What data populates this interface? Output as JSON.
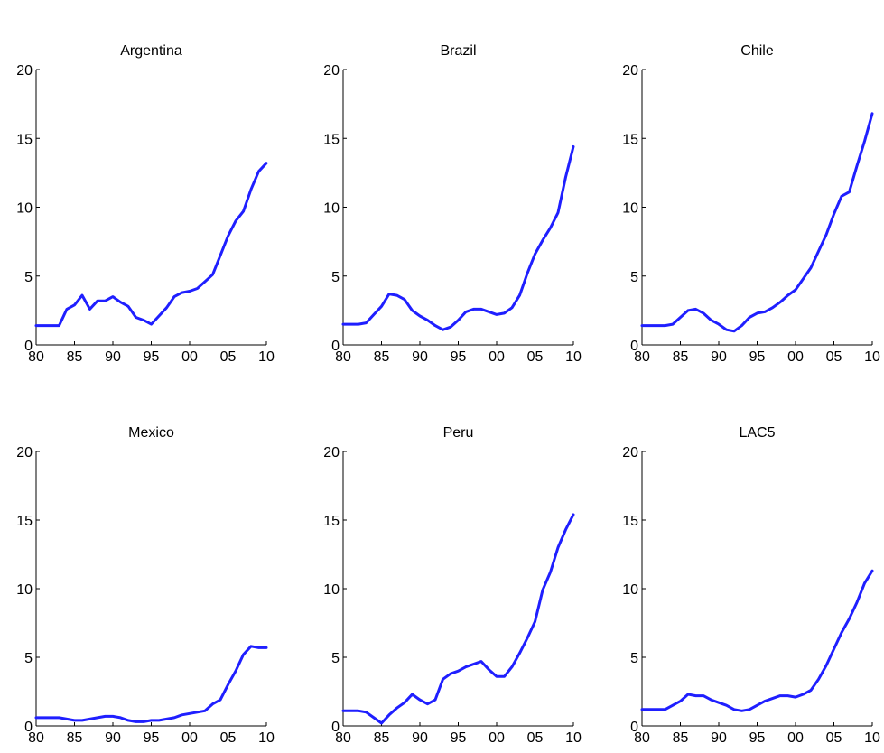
{
  "chart_data": [
    {
      "type": "line",
      "title": "Argentina",
      "xlim": [
        1980,
        2010
      ],
      "ylim": [
        0,
        20
      ],
      "xticks": [
        1980,
        1985,
        1990,
        1995,
        2000,
        2005,
        2010
      ],
      "xtick_labels": [
        "80",
        "85",
        "90",
        "95",
        "00",
        "05",
        "10"
      ],
      "yticks": [
        0,
        5,
        10,
        15,
        20
      ],
      "ytick_labels": [
        "0",
        "5",
        "10",
        "15",
        "20"
      ],
      "series": [
        {
          "color": "#1f1fff",
          "x": [
            1980,
            1981,
            1982,
            1983,
            1984,
            1985,
            1986,
            1987,
            1988,
            1989,
            1990,
            1991,
            1992,
            1993,
            1994,
            1995,
            1996,
            1997,
            1998,
            1999,
            2000,
            2001,
            2002,
            2003,
            2004,
            2005,
            2006,
            2007,
            2008,
            2009,
            2010
          ],
          "y": [
            1.4,
            1.4,
            1.4,
            1.4,
            2.6,
            2.9,
            3.6,
            2.6,
            3.2,
            3.2,
            3.5,
            3.1,
            2.8,
            2.0,
            1.8,
            1.5,
            2.1,
            2.7,
            3.5,
            3.8,
            3.9,
            4.1,
            4.6,
            5.1,
            6.5,
            7.9,
            9.0,
            9.7,
            11.3,
            12.6,
            13.2
          ]
        }
      ]
    },
    {
      "type": "line",
      "title": "Brazil",
      "xlim": [
        1980,
        2010
      ],
      "ylim": [
        0,
        20
      ],
      "xticks": [
        1980,
        1985,
        1990,
        1995,
        2000,
        2005,
        2010
      ],
      "xtick_labels": [
        "80",
        "85",
        "90",
        "95",
        "00",
        "05",
        "10"
      ],
      "yticks": [
        0,
        5,
        10,
        15,
        20
      ],
      "ytick_labels": [
        "0",
        "5",
        "10",
        "15",
        "20"
      ],
      "series": [
        {
          "color": "#1f1fff",
          "x": [
            1980,
            1981,
            1982,
            1983,
            1984,
            1985,
            1986,
            1987,
            1988,
            1989,
            1990,
            1991,
            1992,
            1993,
            1994,
            1995,
            1996,
            1997,
            1998,
            1999,
            2000,
            2001,
            2002,
            2003,
            2004,
            2005,
            2006,
            2007,
            2008,
            2009,
            2010
          ],
          "y": [
            1.5,
            1.5,
            1.5,
            1.6,
            2.2,
            2.8,
            3.7,
            3.6,
            3.3,
            2.5,
            2.1,
            1.8,
            1.4,
            1.1,
            1.3,
            1.8,
            2.4,
            2.6,
            2.6,
            2.4,
            2.2,
            2.3,
            2.7,
            3.6,
            5.2,
            6.6,
            7.6,
            8.5,
            9.6,
            12.2,
            14.4
          ]
        }
      ]
    },
    {
      "type": "line",
      "title": "Chile",
      "xlim": [
        1980,
        2010
      ],
      "ylim": [
        0,
        20
      ],
      "xticks": [
        1980,
        1985,
        1990,
        1995,
        2000,
        2005,
        2010
      ],
      "xtick_labels": [
        "80",
        "85",
        "90",
        "95",
        "00",
        "05",
        "10"
      ],
      "yticks": [
        0,
        5,
        10,
        15,
        20
      ],
      "ytick_labels": [
        "0",
        "5",
        "10",
        "15",
        "20"
      ],
      "series": [
        {
          "color": "#1f1fff",
          "x": [
            1980,
            1981,
            1982,
            1983,
            1984,
            1985,
            1986,
            1987,
            1988,
            1989,
            1990,
            1991,
            1992,
            1993,
            1994,
            1995,
            1996,
            1997,
            1998,
            1999,
            2000,
            2001,
            2002,
            2003,
            2004,
            2005,
            2006,
            2007,
            2008,
            2009,
            2010
          ],
          "y": [
            1.4,
            1.4,
            1.4,
            1.4,
            1.5,
            2.0,
            2.5,
            2.6,
            2.3,
            1.8,
            1.5,
            1.1,
            1.0,
            1.4,
            2.0,
            2.3,
            2.4,
            2.7,
            3.1,
            3.6,
            4.0,
            4.8,
            5.6,
            6.8,
            8.0,
            9.5,
            10.8,
            11.1,
            13.0,
            14.8,
            16.8
          ]
        }
      ]
    },
    {
      "type": "line",
      "title": "Mexico",
      "xlim": [
        1980,
        2010
      ],
      "ylim": [
        0,
        20
      ],
      "xticks": [
        1980,
        1985,
        1990,
        1995,
        2000,
        2005,
        2010
      ],
      "xtick_labels": [
        "80",
        "85",
        "90",
        "95",
        "00",
        "05",
        "10"
      ],
      "yticks": [
        0,
        5,
        10,
        15,
        20
      ],
      "ytick_labels": [
        "0",
        "5",
        "10",
        "15",
        "20"
      ],
      "series": [
        {
          "color": "#1f1fff",
          "x": [
            1980,
            1981,
            1982,
            1983,
            1984,
            1985,
            1986,
            1987,
            1988,
            1989,
            1990,
            1991,
            1992,
            1993,
            1994,
            1995,
            1996,
            1997,
            1998,
            1999,
            2000,
            2001,
            2002,
            2003,
            2004,
            2005,
            2006,
            2007,
            2008,
            2009,
            2010
          ],
          "y": [
            0.6,
            0.6,
            0.6,
            0.6,
            0.5,
            0.4,
            0.4,
            0.5,
            0.6,
            0.7,
            0.7,
            0.6,
            0.4,
            0.3,
            0.3,
            0.4,
            0.4,
            0.5,
            0.6,
            0.8,
            0.9,
            1.0,
            1.1,
            1.6,
            1.9,
            3.0,
            4.0,
            5.2,
            5.8,
            5.7,
            5.7
          ]
        }
      ]
    },
    {
      "type": "line",
      "title": "Peru",
      "xlim": [
        1980,
        2010
      ],
      "ylim": [
        0,
        20
      ],
      "xticks": [
        1980,
        1985,
        1990,
        1995,
        2000,
        2005,
        2010
      ],
      "xtick_labels": [
        "80",
        "85",
        "90",
        "95",
        "00",
        "05",
        "10"
      ],
      "yticks": [
        0,
        5,
        10,
        15,
        20
      ],
      "ytick_labels": [
        "0",
        "5",
        "10",
        "15",
        "20"
      ],
      "series": [
        {
          "color": "#1f1fff",
          "x": [
            1980,
            1981,
            1982,
            1983,
            1984,
            1985,
            1986,
            1987,
            1988,
            1989,
            1990,
            1991,
            1992,
            1993,
            1994,
            1995,
            1996,
            1997,
            1998,
            1999,
            2000,
            2001,
            2002,
            2003,
            2004,
            2005,
            2006,
            2007,
            2008,
            2009,
            2010
          ],
          "y": [
            1.1,
            1.1,
            1.1,
            1.0,
            0.6,
            0.2,
            0.8,
            1.3,
            1.7,
            2.3,
            1.9,
            1.6,
            1.9,
            3.4,
            3.8,
            4.0,
            4.3,
            4.5,
            4.7,
            4.1,
            3.6,
            3.6,
            4.3,
            5.3,
            6.4,
            7.6,
            9.9,
            11.2,
            13.0,
            14.3,
            15.4
          ]
        }
      ]
    },
    {
      "type": "line",
      "title": "LAC5",
      "xlim": [
        1980,
        2010
      ],
      "ylim": [
        0,
        20
      ],
      "xticks": [
        1980,
        1985,
        1990,
        1995,
        2000,
        2005,
        2010
      ],
      "xtick_labels": [
        "80",
        "85",
        "90",
        "95",
        "00",
        "05",
        "10"
      ],
      "yticks": [
        0,
        5,
        10,
        15,
        20
      ],
      "ytick_labels": [
        "0",
        "5",
        "10",
        "15",
        "20"
      ],
      "series": [
        {
          "color": "#1f1fff",
          "x": [
            1980,
            1981,
            1982,
            1983,
            1984,
            1985,
            1986,
            1987,
            1988,
            1989,
            1990,
            1991,
            1992,
            1993,
            1994,
            1995,
            1996,
            1997,
            1998,
            1999,
            2000,
            2001,
            2002,
            2003,
            2004,
            2005,
            2006,
            2007,
            2008,
            2009,
            2010
          ],
          "y": [
            1.2,
            1.2,
            1.2,
            1.2,
            1.5,
            1.8,
            2.3,
            2.2,
            2.2,
            1.9,
            1.7,
            1.5,
            1.2,
            1.1,
            1.2,
            1.5,
            1.8,
            2.0,
            2.2,
            2.2,
            2.1,
            2.3,
            2.6,
            3.4,
            4.4,
            5.6,
            6.8,
            7.8,
            9.0,
            10.4,
            11.3
          ]
        }
      ]
    }
  ]
}
